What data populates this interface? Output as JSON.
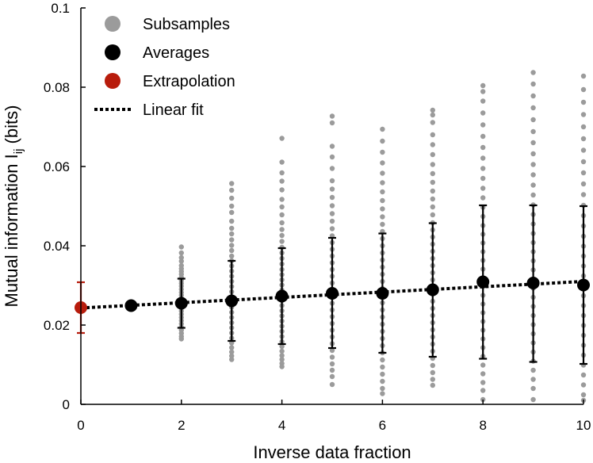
{
  "chart_data": {
    "type": "scatter",
    "xlabel": "Inverse data fraction",
    "ylabel": "Mutual information I",
    "ylabel_subscript": "ij",
    "ylabel_unit": " (bits)",
    "xlim": [
      0,
      10
    ],
    "ylim": [
      0,
      0.1
    ],
    "xticks": [
      0,
      2,
      4,
      6,
      8,
      10
    ],
    "xtick_labels": [
      "0",
      "2",
      "4",
      "6",
      "8",
      "10"
    ],
    "yticks": [
      0,
      0.02,
      0.04,
      0.06,
      0.08,
      0.1
    ],
    "ytick_labels": [
      "0",
      "0.02",
      "0.04",
      "0.06",
      "0.08",
      "0.1"
    ],
    "grid": false,
    "legend_position": "top-left",
    "colors": {
      "subsamples": "#9b9b9b",
      "averages": "#000000",
      "extrapolation": "#b81c0c",
      "fit": "#000000"
    },
    "legend": [
      {
        "label": "Subsamples",
        "kind": "subsamples"
      },
      {
        "label": "Averages",
        "kind": "averages"
      },
      {
        "label": "Extrapolation",
        "kind": "extrapolation"
      },
      {
        "label": "Linear fit",
        "kind": "fit"
      }
    ],
    "series": [
      {
        "name": "Averages",
        "x": [
          1,
          2,
          3,
          4,
          5,
          6,
          7,
          8,
          9,
          10
        ],
        "y": [
          0.0249,
          0.0255,
          0.0261,
          0.0273,
          0.028,
          0.028,
          0.0289,
          0.0309,
          0.0306,
          0.0301
        ],
        "err_low": [
          null,
          0.0193,
          0.016,
          0.0152,
          0.0142,
          0.013,
          0.012,
          0.0115,
          0.0107,
          0.0102
        ],
        "err_high": [
          null,
          0.0317,
          0.0362,
          0.0394,
          0.042,
          0.0431,
          0.0457,
          0.0502,
          0.0502,
          0.05
        ]
      },
      {
        "name": "Extrapolation",
        "x": [
          0
        ],
        "y": [
          0.0244
        ],
        "err_low": [
          0.018
        ],
        "err_high": [
          0.0308
        ]
      },
      {
        "name": "Linear fit",
        "x": [
          0,
          10
        ],
        "y": [
          0.0243,
          0.031
        ]
      },
      {
        "name": "Subsamples",
        "groups": [
          {
            "x": 2,
            "y": [
              0.0397,
              0.0382,
              0.037,
              0.0361,
              0.035,
              0.0342,
              0.0335,
              0.0328,
              0.032,
              0.0312,
              0.0305,
              0.0298,
              0.029,
              0.0282,
              0.0275,
              0.0267,
              0.0259,
              0.0251,
              0.0243,
              0.0235,
              0.0227,
              0.0219,
              0.0211,
              0.0203,
              0.0195,
              0.0187,
              0.0179,
              0.0171,
              0.0165
            ]
          },
          {
            "x": 3,
            "y": [
              0.0557,
              0.054,
              0.052,
              0.05,
              0.0484,
              0.0462,
              0.0444,
              0.043,
              0.0415,
              0.0401,
              0.0388,
              0.0374,
              0.0362,
              0.0349,
              0.0336,
              0.0323,
              0.031,
              0.0297,
              0.0284,
              0.0271,
              0.0258,
              0.0245,
              0.0232,
              0.0219,
              0.0206,
              0.0193,
              0.018,
              0.0167,
              0.0155,
              0.0143,
              0.0132,
              0.0122,
              0.0113
            ]
          },
          {
            "x": 4,
            "y": [
              0.0671,
              0.0611,
              0.0584,
              0.0563,
              0.0541,
              0.0517,
              0.0498,
              0.0478,
              0.0458,
              0.0441,
              0.0426,
              0.0411,
              0.0396,
              0.0382,
              0.0368,
              0.0354,
              0.034,
              0.0327,
              0.0314,
              0.0301,
              0.0288,
              0.0275,
              0.0262,
              0.0249,
              0.0236,
              0.0223,
              0.021,
              0.0197,
              0.0184,
              0.0171,
              0.0158,
              0.0146,
              0.0134,
              0.0123,
              0.0113,
              0.0103,
              0.0095
            ]
          },
          {
            "x": 5,
            "y": [
              0.0727,
              0.071,
              0.0651,
              0.0624,
              0.0595,
              0.0564,
              0.0543,
              0.0522,
              0.0501,
              0.0481,
              0.0462,
              0.0443,
              0.0425,
              0.0408,
              0.0391,
              0.0374,
              0.0357,
              0.034,
              0.0323,
              0.0306,
              0.0289,
              0.0272,
              0.0255,
              0.0238,
              0.0221,
              0.0204,
              0.0187,
              0.017,
              0.0153,
              0.0136,
              0.0119,
              0.0102,
              0.0086,
              0.007,
              0.005
            ]
          },
          {
            "x": 6,
            "y": [
              0.0694,
              0.0664,
              0.0636,
              0.0609,
              0.0583,
              0.0559,
              0.0536,
              0.0514,
              0.0493,
              0.0473,
              0.0454,
              0.0436,
              0.0418,
              0.04,
              0.0382,
              0.0364,
              0.0346,
              0.0328,
              0.031,
              0.0292,
              0.0274,
              0.0256,
              0.0238,
              0.022,
              0.0202,
              0.0184,
              0.0166,
              0.0148,
              0.013,
              0.0112,
              0.0094,
              0.0076,
              0.0058,
              0.004,
              0.0027
            ]
          },
          {
            "x": 7,
            "y": [
              0.0742,
              0.073,
              0.0711,
              0.068,
              0.0655,
              0.063,
              0.0605,
              0.0582,
              0.056,
              0.0538,
              0.0518,
              0.0498,
              0.0478,
              0.0458,
              0.044,
              0.0422,
              0.0404,
              0.0386,
              0.0368,
              0.035,
              0.0332,
              0.0314,
              0.0296,
              0.0278,
              0.026,
              0.0242,
              0.0224,
              0.0206,
              0.0188,
              0.017,
              0.0152,
              0.0134,
              0.0116,
              0.0098,
              0.008,
              0.0063,
              0.0048
            ]
          },
          {
            "x": 8,
            "y": [
              0.0804,
              0.0789,
              0.0765,
              0.0735,
              0.0705,
              0.0676,
              0.0648,
              0.0621,
              0.0595,
              0.057,
              0.0545,
              0.0521,
              0.0497,
              0.0474,
              0.0451,
              0.0429,
              0.0407,
              0.0385,
              0.0363,
              0.0341,
              0.0319,
              0.0297,
              0.0275,
              0.0253,
              0.0231,
              0.0209,
              0.0187,
              0.0165,
              0.0143,
              0.0121,
              0.0099,
              0.0077,
              0.0055,
              0.0035,
              0.0012
            ]
          },
          {
            "x": 9,
            "y": [
              0.0837,
              0.0808,
              0.0778,
              0.0748,
              0.0718,
              0.0688,
              0.066,
              0.0632,
              0.0605,
              0.0579,
              0.0553,
              0.0528,
              0.0503,
              0.0479,
              0.0455,
              0.0431,
              0.0408,
              0.0385,
              0.0362,
              0.0339,
              0.0316,
              0.0293,
              0.027,
              0.0247,
              0.0224,
              0.0201,
              0.0178,
              0.0155,
              0.0132,
              0.0109,
              0.0086,
              0.0063,
              0.004,
              0.0012
            ]
          },
          {
            "x": 10,
            "y": [
              0.0828,
              0.0794,
              0.0762,
              0.0731,
              0.07,
              0.067,
              0.0641,
              0.0612,
              0.0584,
              0.0556,
              0.0529,
              0.0502,
              0.0476,
              0.045,
              0.0424,
              0.0399,
              0.0374,
              0.0349,
              0.0324,
              0.0299,
              0.0274,
              0.0249,
              0.0224,
              0.0199,
              0.0174,
              0.0149,
              0.0124,
              0.0099,
              0.0074,
              0.0049,
              0.0024,
              0.001
            ]
          }
        ]
      }
    ]
  }
}
